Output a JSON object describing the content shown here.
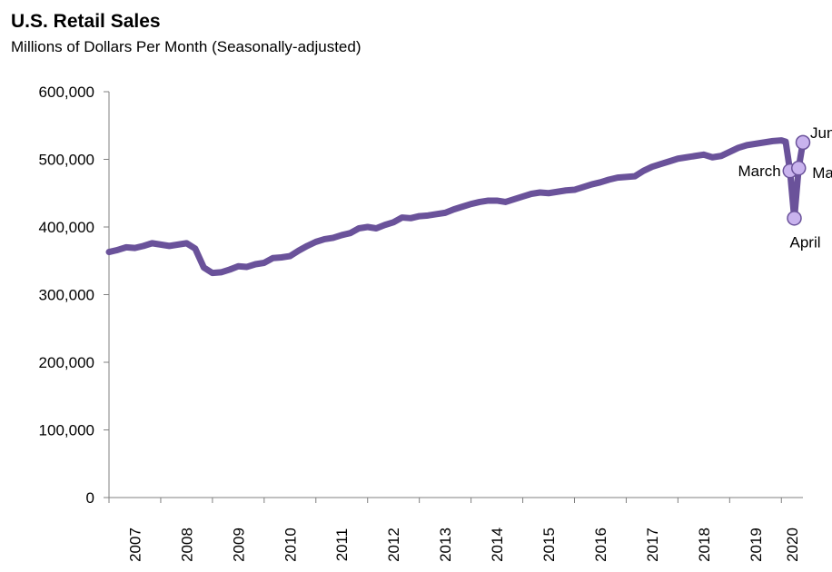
{
  "chart_data": {
    "type": "line",
    "title": "U.S. Retail Sales",
    "subtitle": "Millions of Dollars Per Month (Seasonally-adjusted)",
    "xlabel": "",
    "ylabel": "",
    "ylim": [
      0,
      600000
    ],
    "yticks": [
      0,
      100000,
      200000,
      300000,
      400000,
      500000,
      600000
    ],
    "ytick_labels": [
      "0",
      "100,000",
      "200,000",
      "300,000",
      "400,000",
      "500,000",
      "600,000"
    ],
    "xlim": [
      "2007-01",
      "2020-06"
    ],
    "year_labels": [
      "2007",
      "2008",
      "2009",
      "2010",
      "2011",
      "2012",
      "2013",
      "2014",
      "2015",
      "2016",
      "2017",
      "2018",
      "2019",
      "2020"
    ],
    "grid": false,
    "line_color": "#6a529a",
    "marker_color": "#c9b3ee",
    "series": [
      {
        "x": [
          "2007-01",
          "2007-03",
          "2007-05",
          "2007-07",
          "2007-09",
          "2007-11",
          "2008-01",
          "2008-03",
          "2008-05",
          "2008-07",
          "2008-09",
          "2008-11",
          "2009-01",
          "2009-03",
          "2009-05",
          "2009-07",
          "2009-09",
          "2009-11",
          "2010-01",
          "2010-03",
          "2010-05",
          "2010-07",
          "2010-09",
          "2010-11",
          "2011-01",
          "2011-03",
          "2011-05",
          "2011-07",
          "2011-09",
          "2011-11",
          "2012-01",
          "2012-03",
          "2012-05",
          "2012-07",
          "2012-09",
          "2012-11",
          "2013-01",
          "2013-03",
          "2013-05",
          "2013-07",
          "2013-09",
          "2013-11",
          "2014-01",
          "2014-03",
          "2014-05",
          "2014-07",
          "2014-09",
          "2014-11",
          "2015-01",
          "2015-03",
          "2015-05",
          "2015-07",
          "2015-09",
          "2015-11",
          "2016-01",
          "2016-03",
          "2016-05",
          "2016-07",
          "2016-09",
          "2016-11",
          "2017-01",
          "2017-03",
          "2017-05",
          "2017-07",
          "2017-09",
          "2017-11",
          "2018-01",
          "2018-03",
          "2018-05",
          "2018-07",
          "2018-09",
          "2018-11",
          "2019-01",
          "2019-03",
          "2019-05",
          "2019-07",
          "2019-09",
          "2019-11",
          "2020-01",
          "2020-02",
          "2020-03",
          "2020-04",
          "2020-05",
          "2020-06"
        ],
        "values": [
          363000,
          366000,
          370000,
          369000,
          372000,
          376000,
          374000,
          372000,
          374000,
          376000,
          368000,
          340000,
          332000,
          333000,
          337000,
          342000,
          341000,
          345000,
          347000,
          354000,
          355000,
          357000,
          365000,
          372000,
          378000,
          382000,
          384000,
          388000,
          391000,
          398000,
          400000,
          398000,
          403000,
          407000,
          414000,
          413000,
          416000,
          417000,
          419000,
          421000,
          426000,
          430000,
          434000,
          437000,
          439000,
          439000,
          437000,
          441000,
          445000,
          449000,
          451000,
          450000,
          452000,
          454000,
          455000,
          459000,
          463000,
          466000,
          470000,
          473000,
          474000,
          475000,
          483000,
          489000,
          493000,
          497000,
          501000,
          503000,
          505000,
          507000,
          503000,
          505000,
          511000,
          517000,
          521000,
          523000,
          525000,
          527000,
          528000,
          526000,
          483000,
          413000,
          487000,
          525000
        ]
      }
    ],
    "annotations": [
      {
        "label": "March",
        "x": "2020-03",
        "y": 483000
      },
      {
        "label": "April",
        "x": "2020-04",
        "y": 413000
      },
      {
        "label": "May",
        "x": "2020-05",
        "y": 487000
      },
      {
        "label": "June",
        "x": "2020-06",
        "y": 525000
      }
    ]
  }
}
